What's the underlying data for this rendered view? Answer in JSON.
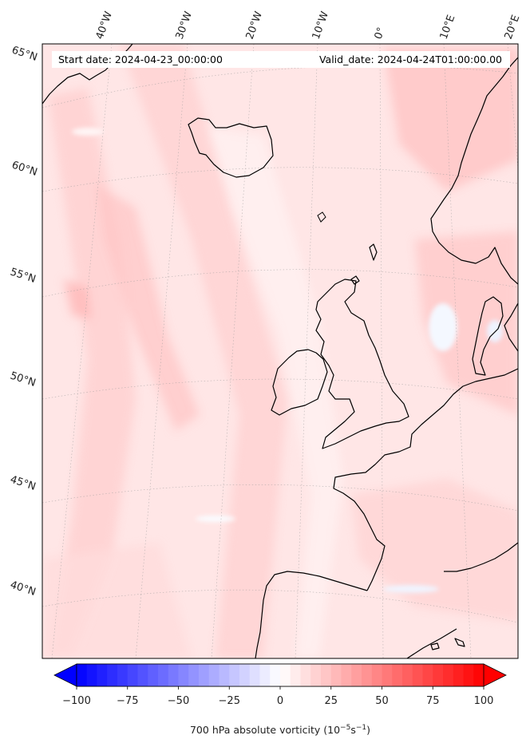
{
  "header": {
    "start_label": "Start date: 2024-04-23_00:00:00",
    "valid_label": "Valid_date: 2024-04-24T01:00:00.00"
  },
  "map": {
    "projection": "conic",
    "field": "700 hPa absolute vorticity",
    "longitude_labels": [
      "40°W",
      "30°W",
      "20°W",
      "10°W",
      "0°",
      "10°E",
      "20°E"
    ],
    "latitude_labels": [
      "65°N",
      "60°N",
      "55°N",
      "50°N",
      "45°N",
      "40°N"
    ],
    "coastline_color": "#000000",
    "gridline_style": "dotted"
  },
  "colorbar": {
    "min": -100,
    "max": 100,
    "ticks": [
      "−100",
      "−75",
      "−50",
      "−25",
      "0",
      "25",
      "50",
      "75",
      "100"
    ],
    "label": "700 hPa absolute vorticity (10",
    "label_exp": "−5",
    "label_mid": "s",
    "label_exp2": "−1",
    "label_end": ")",
    "low_color": "#0000ff",
    "mid_color": "#ffffff",
    "high_color": "#ff0000",
    "extend": "both"
  }
}
